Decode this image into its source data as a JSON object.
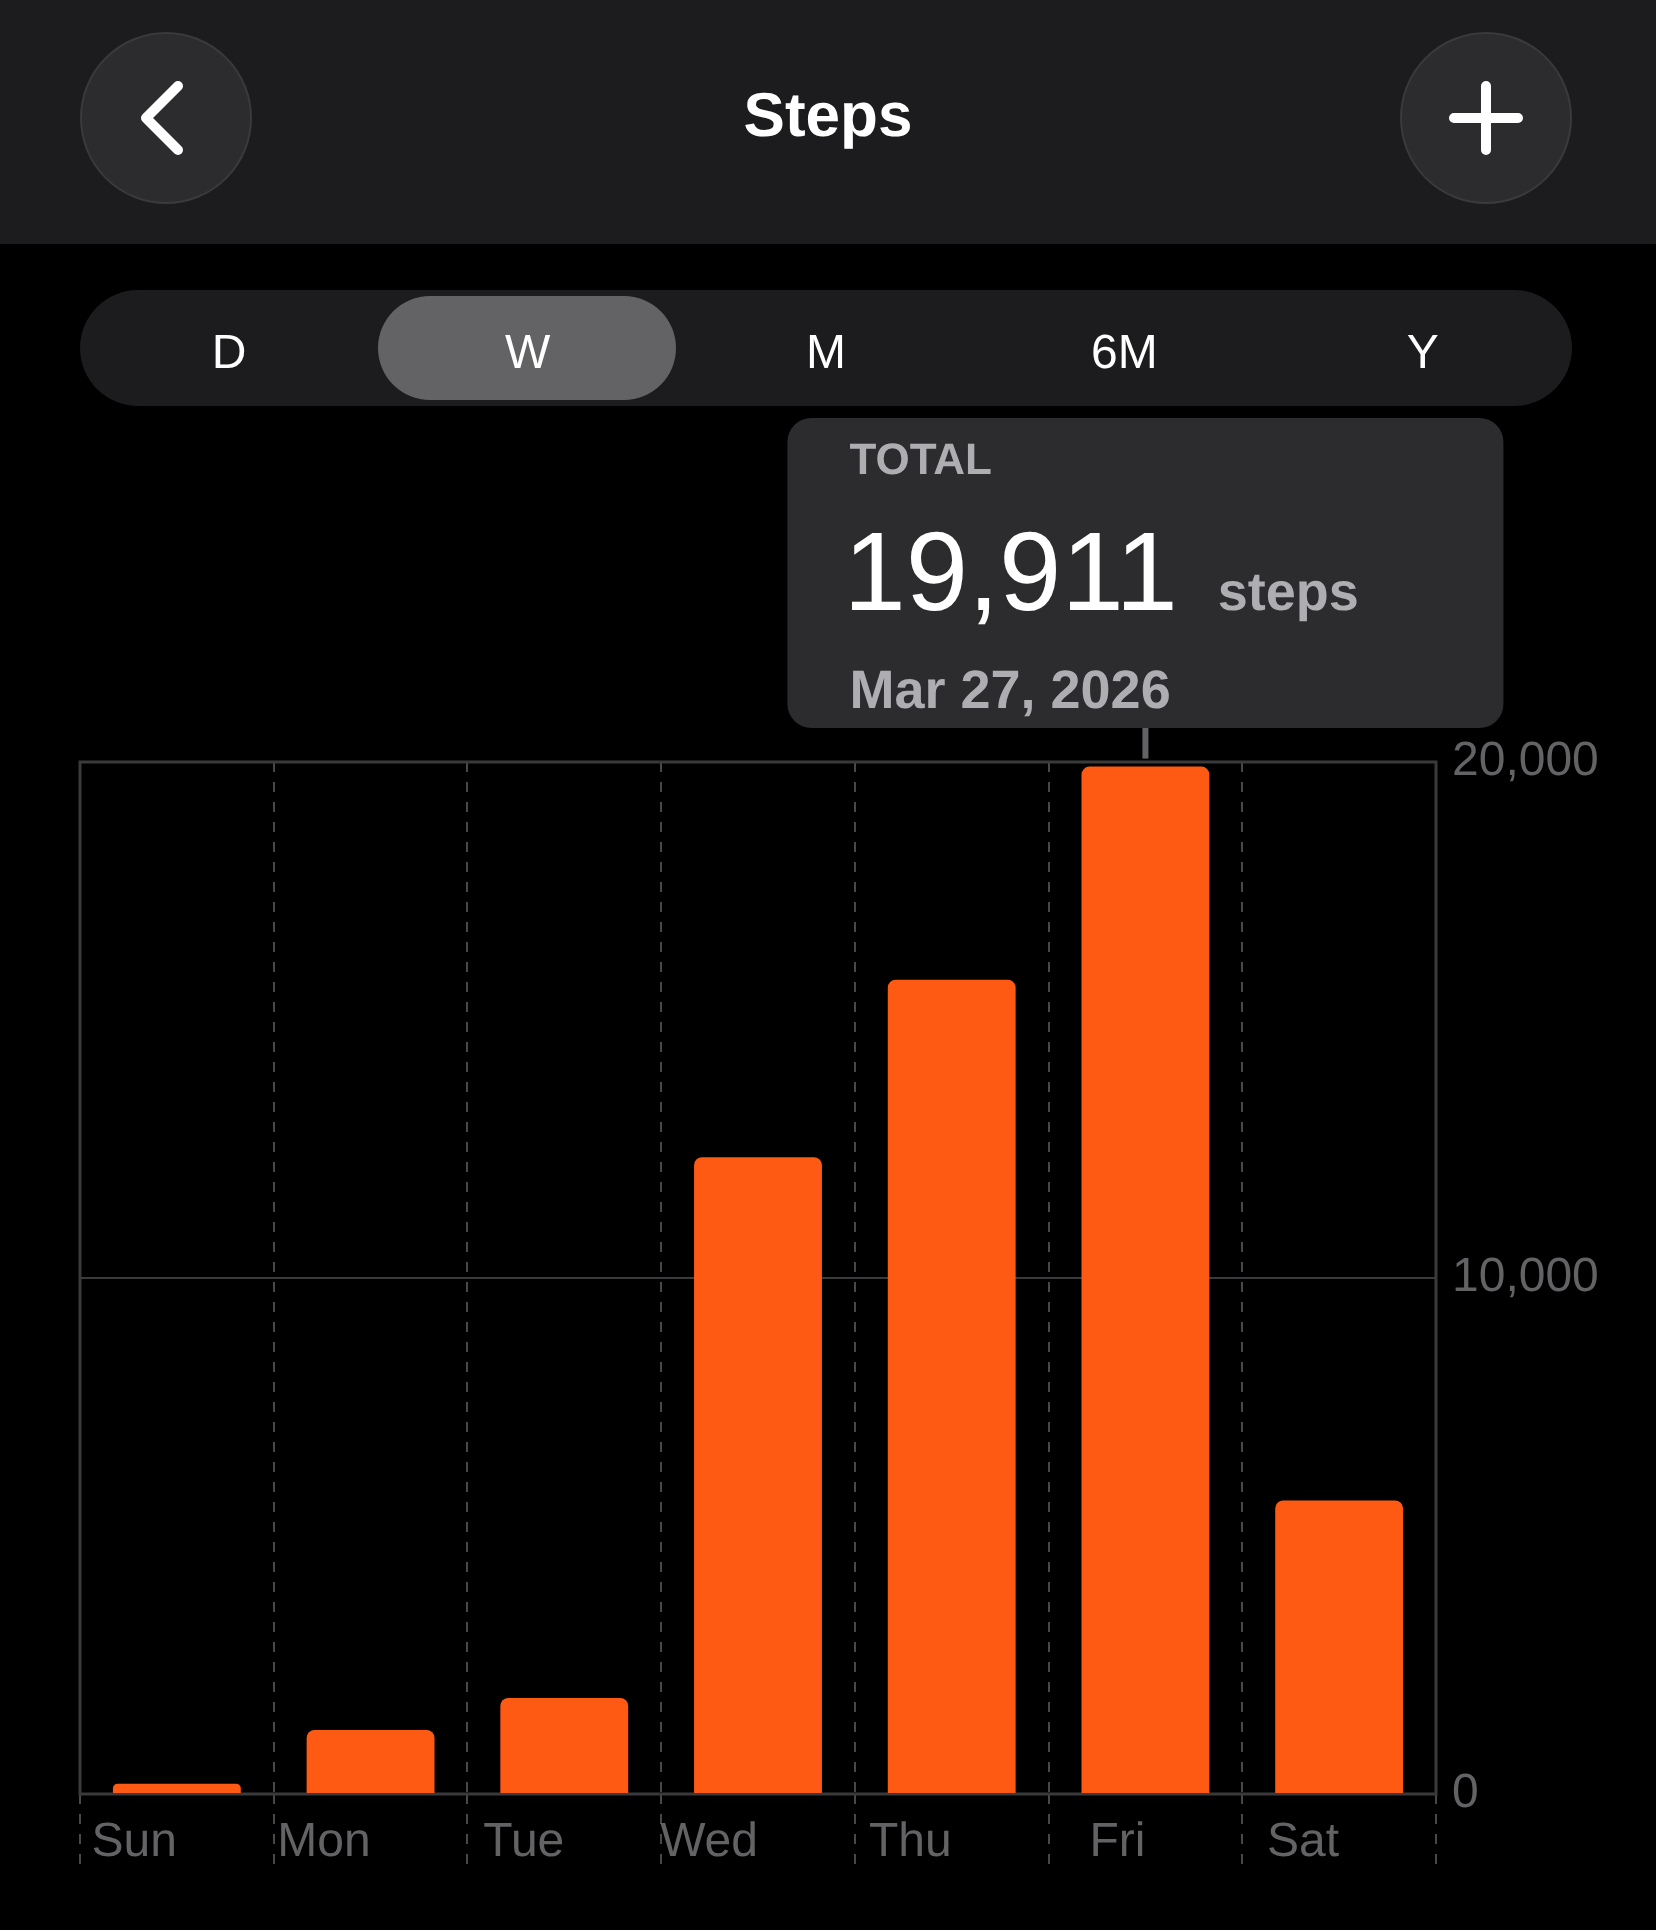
{
  "chart_data": {
    "type": "bar",
    "title": "Steps",
    "categories": [
      "Sun",
      "Mon",
      "Tue",
      "Wed",
      "Thu",
      "Fri",
      "Sat"
    ],
    "values": [
      200,
      1240,
      1860,
      12340,
      15780,
      19911,
      5690
    ],
    "value_labels": [
      null,
      null,
      null,
      null,
      null,
      "19,911",
      null
    ],
    "color": "#ff5a14",
    "ylim": [
      0,
      20000
    ],
    "yticks": [
      0,
      {
        "value": 10000,
        "label": "10,000"
      },
      {
        "value": 20000,
        "label": "20,000"
      }
    ],
    "grid": true,
    "legend": false,
    "annotations": [
      "D",
      "W",
      "M",
      "6M",
      "Y",
      "TOTAL",
      "steps",
      "Mar 27, 2026"
    ]
  }
}
